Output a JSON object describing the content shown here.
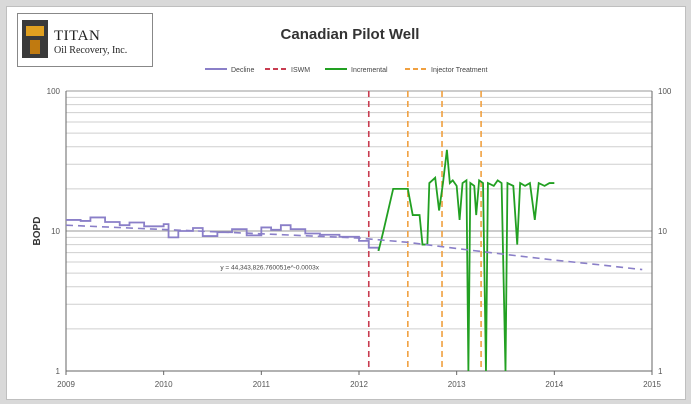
{
  "logo": {
    "line1": "TITAN",
    "line2": "Oil Recovery, Inc."
  },
  "chart_data": {
    "type": "line",
    "title": "Canadian Pilot Well",
    "ylabel": "BOPD",
    "xlabel": "",
    "y_scale": "log",
    "ylim": [
      1,
      100
    ],
    "xlim": [
      2009,
      2015
    ],
    "x_ticks": [
      "2009",
      "2010",
      "2011",
      "2012",
      "2013",
      "2014",
      "2015"
    ],
    "y_ticks": [
      "1",
      "10",
      "100"
    ],
    "grid": true,
    "legend": "top-center",
    "equation": "y = 44,343,826.760051e^-0.0003x",
    "series": [
      {
        "name": "Decline",
        "color": "#8a7fc8",
        "style": "step",
        "points": [
          [
            2009.0,
            12
          ],
          [
            2009.15,
            11.8
          ],
          [
            2009.25,
            12.5
          ],
          [
            2009.4,
            11.6
          ],
          [
            2009.55,
            11
          ],
          [
            2009.65,
            11.5
          ],
          [
            2009.8,
            10.8
          ],
          [
            2010.0,
            11.2
          ],
          [
            2010.05,
            9
          ],
          [
            2010.15,
            10
          ],
          [
            2010.3,
            10.5
          ],
          [
            2010.4,
            9.2
          ],
          [
            2010.55,
            9.8
          ],
          [
            2010.7,
            10.3
          ],
          [
            2010.85,
            9.3
          ],
          [
            2011.0,
            10.6
          ],
          [
            2011.1,
            10.2
          ],
          [
            2011.2,
            11
          ],
          [
            2011.3,
            10.3
          ],
          [
            2011.45,
            9.6
          ],
          [
            2011.6,
            9.4
          ],
          [
            2011.8,
            9.1
          ],
          [
            2012.0,
            8.5
          ],
          [
            2012.1,
            7.6
          ],
          [
            2012.2,
            7.2
          ]
        ]
      },
      {
        "name": "Incremental",
        "color": "#22a022",
        "style": "line",
        "points": [
          [
            2012.2,
            7.2
          ],
          [
            2012.25,
            10
          ],
          [
            2012.35,
            20
          ],
          [
            2012.5,
            20
          ],
          [
            2012.55,
            13
          ],
          [
            2012.62,
            13
          ],
          [
            2012.65,
            8
          ],
          [
            2012.7,
            8
          ],
          [
            2012.72,
            22
          ],
          [
            2012.78,
            24
          ],
          [
            2012.82,
            14
          ],
          [
            2012.86,
            22
          ],
          [
            2012.9,
            38
          ],
          [
            2012.93,
            22
          ],
          [
            2012.96,
            23
          ],
          [
            2013.0,
            21
          ],
          [
            2013.03,
            12
          ],
          [
            2013.06,
            22
          ],
          [
            2013.1,
            23
          ],
          [
            2013.12,
            1
          ],
          [
            2013.14,
            22
          ],
          [
            2013.18,
            21
          ],
          [
            2013.2,
            13
          ],
          [
            2013.23,
            23
          ],
          [
            2013.27,
            22
          ],
          [
            2013.3,
            1
          ],
          [
            2013.32,
            22
          ],
          [
            2013.38,
            21
          ],
          [
            2013.42,
            23
          ],
          [
            2013.46,
            22
          ],
          [
            2013.5,
            1
          ],
          [
            2013.52,
            22
          ],
          [
            2013.58,
            21
          ],
          [
            2013.62,
            8
          ],
          [
            2013.65,
            22
          ],
          [
            2013.7,
            21
          ],
          [
            2013.75,
            22
          ],
          [
            2013.8,
            12
          ],
          [
            2013.84,
            22
          ],
          [
            2013.9,
            21
          ],
          [
            2013.95,
            22
          ],
          [
            2014.0,
            22
          ]
        ]
      },
      {
        "name": "Trendline",
        "color": "#8a7fc8",
        "style": "dash",
        "points": [
          [
            2009.0,
            11
          ],
          [
            2012.0,
            8.9
          ],
          [
            2012.5,
            8.3
          ],
          [
            2013.0,
            7.5
          ],
          [
            2013.5,
            6.8
          ],
          [
            2014.0,
            6.2
          ],
          [
            2014.5,
            5.7
          ],
          [
            2014.9,
            5.3
          ]
        ]
      }
    ],
    "vlines": [
      {
        "name": "ISWM",
        "color": "#c83c50",
        "x": [
          2012.1
        ]
      },
      {
        "name": "Injector Treatment",
        "color": "#f0a040",
        "x": [
          2012.5,
          2012.85,
          2013.25
        ]
      }
    ],
    "legend_labels": [
      "Decline",
      "ISWM",
      "Incremental",
      "Injector Treatment"
    ]
  }
}
